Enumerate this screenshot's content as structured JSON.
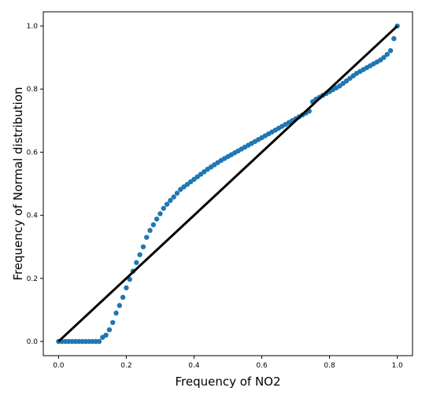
{
  "chart_data": {
    "type": "scatter",
    "title": "",
    "xlabel": "Frequency of NO2",
    "ylabel": "Frequency of Normal distribution",
    "xlim": [
      -0.045,
      1.045
    ],
    "ylim": [
      -0.045,
      1.045
    ],
    "xticks": [
      "0.0",
      "0.2",
      "0.4",
      "0.6",
      "0.8",
      "1.0"
    ],
    "yticks": [
      "0.0",
      "0.2",
      "0.4",
      "0.6",
      "0.8",
      "1.0"
    ],
    "grid": false,
    "legend": "none",
    "point_color": "#1f77b4",
    "reference_line": {
      "x": [
        0,
        1
      ],
      "y": [
        0,
        1
      ],
      "color": "#000000"
    },
    "points": {
      "x": [
        0.0,
        0.01,
        0.02,
        0.03,
        0.04,
        0.05,
        0.06,
        0.07,
        0.08,
        0.09,
        0.1,
        0.11,
        0.12,
        0.13,
        0.14,
        0.15,
        0.16,
        0.17,
        0.18,
        0.19,
        0.2,
        0.21,
        0.22,
        0.23,
        0.24,
        0.25,
        0.26,
        0.27,
        0.28,
        0.29,
        0.3,
        0.31,
        0.32,
        0.33,
        0.34,
        0.35,
        0.36,
        0.37,
        0.38,
        0.39,
        0.4,
        0.41,
        0.42,
        0.43,
        0.44,
        0.45,
        0.46,
        0.47,
        0.48,
        0.49,
        0.5,
        0.51,
        0.52,
        0.53,
        0.54,
        0.55,
        0.56,
        0.57,
        0.58,
        0.59,
        0.6,
        0.61,
        0.62,
        0.63,
        0.64,
        0.65,
        0.66,
        0.67,
        0.68,
        0.69,
        0.7,
        0.71,
        0.72,
        0.73,
        0.74,
        0.75,
        0.76,
        0.77,
        0.78,
        0.79,
        0.8,
        0.81,
        0.82,
        0.83,
        0.84,
        0.85,
        0.86,
        0.87,
        0.88,
        0.89,
        0.9,
        0.91,
        0.92,
        0.93,
        0.94,
        0.95,
        0.96,
        0.97,
        0.98,
        0.99,
        1.0
      ],
      "y": [
        0.0,
        0.0,
        0.0,
        0.0,
        0.0,
        0.0,
        0.0,
        0.0,
        0.0,
        0.0,
        0.0,
        0.0,
        0.0,
        0.013,
        0.02,
        0.037,
        0.06,
        0.09,
        0.114,
        0.14,
        0.17,
        0.197,
        0.223,
        0.25,
        0.275,
        0.3,
        0.33,
        0.352,
        0.37,
        0.388,
        0.405,
        0.422,
        0.435,
        0.447,
        0.458,
        0.47,
        0.482,
        0.49,
        0.498,
        0.506,
        0.514,
        0.522,
        0.53,
        0.538,
        0.546,
        0.553,
        0.56,
        0.567,
        0.574,
        0.58,
        0.586,
        0.592,
        0.598,
        0.604,
        0.61,
        0.616,
        0.622,
        0.628,
        0.634,
        0.64,
        0.646,
        0.652,
        0.658,
        0.664,
        0.67,
        0.676,
        0.682,
        0.688,
        0.694,
        0.7,
        0.706,
        0.712,
        0.718,
        0.724,
        0.73,
        0.76,
        0.768,
        0.774,
        0.78,
        0.786,
        0.792,
        0.798,
        0.804,
        0.81,
        0.818,
        0.826,
        0.834,
        0.842,
        0.85,
        0.856,
        0.862,
        0.868,
        0.874,
        0.88,
        0.886,
        0.892,
        0.9,
        0.91,
        0.922,
        0.96,
        1.0
      ]
    }
  }
}
